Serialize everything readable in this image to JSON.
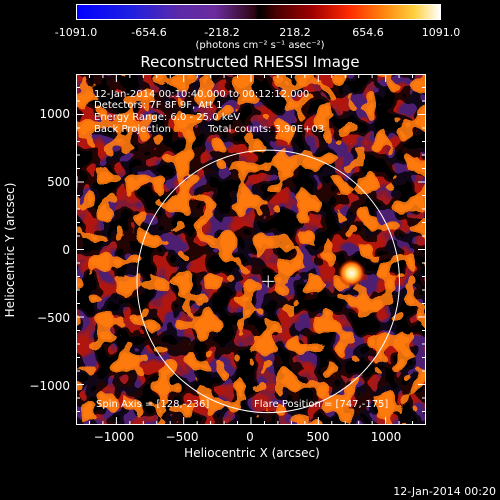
{
  "colorbar": {
    "ticks": [
      "-1091.0",
      "-654.6",
      "-218.2",
      "218.2",
      "654.6",
      "1091.0"
    ],
    "unit_label": "(photons cm⁻² s⁻¹ asec⁻²)",
    "range": [
      -1091.0,
      1091.0
    ]
  },
  "chart_data": {
    "type": "heatmap",
    "title": "Reconstructed RHESSI Image",
    "xlabel": "Heliocentric X (arcsec)",
    "ylabel": "Heliocentric Y (arcsec)",
    "xlim": [
      -1300,
      1300
    ],
    "ylim": [
      -1300,
      1300
    ],
    "xticks": [
      "−1000",
      "−500",
      "0",
      "500",
      "1000"
    ],
    "xtick_values": [
      -1000,
      -500,
      0,
      500,
      1000
    ],
    "yticks": [
      "1000",
      "500",
      "0",
      "−500",
      "−1000"
    ],
    "ytick_values": [
      1000,
      500,
      0,
      -500,
      -1000
    ],
    "solar_limb_radius_arcsec": 975,
    "flare_position": [
      747,
      -175
    ],
    "spin_axis": [
      128,
      -236
    ]
  },
  "annotations": {
    "time_range": "12-Jan-2014 00:10:40.000 to 00:12:12.000",
    "detectors": "Detectors: 7F 8F 9F, Att 1",
    "energy_range": "Energy Range: 6.0 - 25.0 keV",
    "method": "Back Projection",
    "total_counts": "Total counts: 3.90E+03",
    "spin_axis": "Spin Axis = [128,-236]",
    "flare_position": "Flare Position = [747,-175]"
  },
  "footer": {
    "timestamp": "12-Jan-2014 00:20"
  },
  "colors": {
    "background": "#000000",
    "limb": "#ffffff",
    "axes": "#ffffff"
  }
}
